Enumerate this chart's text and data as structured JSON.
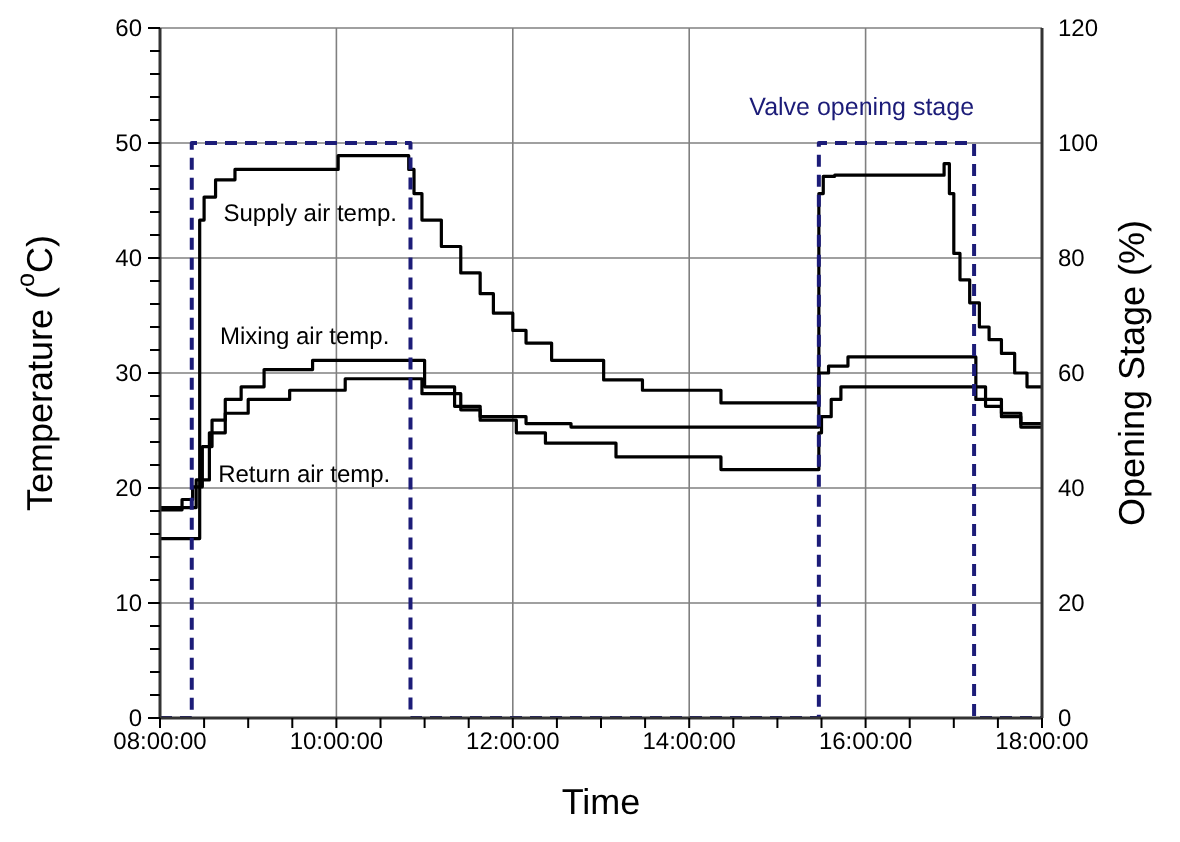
{
  "chart_data": {
    "type": "step",
    "xlabel": "Time",
    "ylabel": "Temperature ($^{o}$C)",
    "y2label": "Opening Stage (%)",
    "xlim": [
      8,
      18
    ],
    "xticks": [
      {
        "value": 8,
        "label": "08:00:00"
      },
      {
        "value": 8.5,
        "label": null
      },
      {
        "value": 9,
        "label": null
      },
      {
        "value": 9.5,
        "label": null
      },
      {
        "value": 10,
        "label": "10:00:00"
      },
      {
        "value": 10.5,
        "label": null
      },
      {
        "value": 11,
        "label": null
      },
      {
        "value": 11.5,
        "label": null
      },
      {
        "value": 12,
        "label": "12:00:00"
      },
      {
        "value": 12.5,
        "label": null
      },
      {
        "value": 13,
        "label": null
      },
      {
        "value": 13.5,
        "label": null
      },
      {
        "value": 14,
        "label": "14:00:00"
      },
      {
        "value": 14.5,
        "label": null
      },
      {
        "value": 15,
        "label": null
      },
      {
        "value": 15.5,
        "label": null
      },
      {
        "value": 16,
        "label": "16:00:00"
      },
      {
        "value": 16.5,
        "label": null
      },
      {
        "value": 17,
        "label": null
      },
      {
        "value": 17.5,
        "label": null
      },
      {
        "value": 18,
        "label": "18:00:00"
      }
    ],
    "ylim": [
      0,
      60
    ],
    "yticks": [
      0,
      {
        "value": 2,
        "label": null
      },
      {
        "value": 4,
        "label": null
      },
      {
        "value": 6,
        "label": null
      },
      {
        "value": 8,
        "label": null
      },
      10,
      {
        "value": 12,
        "label": null
      },
      {
        "value": 14,
        "label": null
      },
      {
        "value": 16,
        "label": null
      },
      {
        "value": 18,
        "label": null
      },
      20,
      {
        "value": 22,
        "label": null
      },
      {
        "value": 24,
        "label": null
      },
      {
        "value": 26,
        "label": null
      },
      {
        "value": 28,
        "label": null
      },
      30,
      {
        "value": 32,
        "label": null
      },
      {
        "value": 34,
        "label": null
      },
      {
        "value": 36,
        "label": null
      },
      {
        "value": 38,
        "label": null
      },
      40,
      {
        "value": 42,
        "label": null
      },
      {
        "value": 44,
        "label": null
      },
      {
        "value": 46,
        "label": null
      },
      {
        "value": 48,
        "label": null
      },
      50,
      {
        "value": 52,
        "label": null
      },
      {
        "value": 54,
        "label": null
      },
      {
        "value": 56,
        "label": null
      },
      {
        "value": 58,
        "label": null
      },
      60
    ],
    "y2lim": [
      0,
      120
    ],
    "y2ticks": [
      0,
      20,
      40,
      60,
      80,
      100,
      120
    ],
    "grid": true,
    "legend": false,
    "marker": "none",
    "line_style": "solid",
    "series": [
      {
        "color": "#000000",
        "x": [
          8,
          8.35,
          8.45,
          8.5,
          8.63,
          8.85,
          10.02,
          10.82,
          10.88,
          10.97,
          11.19,
          11.41,
          11.63,
          11.78,
          12,
          12.15,
          12.44,
          13.03,
          13.47,
          14.36,
          15.47,
          15.52,
          15.65,
          16.89,
          16.95,
          17,
          17.07,
          17.18,
          17.29,
          17.4,
          17.54,
          17.69,
          17.83,
          18
        ],
        "values": [
          15.6,
          15.6,
          43.3,
          45.3,
          46.8,
          47.7,
          48.9,
          47.7,
          45.6,
          43.3,
          41,
          38.7,
          36.9,
          35.2,
          33.7,
          32.6,
          31.1,
          29.4,
          28.5,
          27.4,
          45.6,
          47.1,
          47.2,
          48.2,
          45.6,
          40.4,
          38.1,
          36.1,
          34,
          32.9,
          31.7,
          30,
          28.8,
          28.8
        ]
      },
      {
        "color": "#000000",
        "x": [
          8,
          8.25,
          8.37,
          8.48,
          8.59,
          8.74,
          8.92,
          9.18,
          9.73,
          11,
          11.34,
          11.63,
          12.15,
          12.66,
          15.47,
          15.58,
          15.8,
          16.09,
          17.25,
          17.36,
          17.54,
          17.76,
          18
        ],
        "values": [
          18.1,
          19,
          20.1,
          23.6,
          25.9,
          27.7,
          28.8,
          30.3,
          31.1,
          28.8,
          27.1,
          26.2,
          25.6,
          25.3,
          30,
          30.6,
          31.4,
          31.4,
          28.8,
          27.7,
          26.5,
          25.6,
          25.6
        ]
      },
      {
        "color": "#000000",
        "x": [
          8,
          8.35,
          8.41,
          8.56,
          8.74,
          9,
          9.47,
          10.1,
          10.97,
          11.41,
          11.63,
          12.04,
          12.37,
          13.17,
          14.36,
          15.47,
          15.5,
          15.61,
          15.72,
          16.09,
          17.25,
          17.36,
          17.54,
          17.76,
          18
        ],
        "values": [
          18.3,
          18.3,
          20.7,
          24.8,
          26.5,
          27.7,
          28.5,
          29.5,
          28.2,
          26.8,
          25.9,
          24.8,
          23.9,
          22.7,
          21.6,
          24.8,
          26.2,
          27.7,
          28.8,
          28.8,
          27.7,
          27.1,
          26.2,
          25.3,
          25.3
        ]
      },
      {
        "name": "Valve opening stage",
        "color": "#1c1c78",
        "axis": "y2",
        "line_style": "dashed",
        "x": [
          8,
          8.36,
          10.84,
          15.47,
          17.23,
          18
        ],
        "values": [
          0,
          100,
          0,
          100,
          0,
          0
        ]
      }
    ],
    "annotations": [
      "Supply air temp.",
      "Mixing air temp.",
      "Return air temp."
    ]
  }
}
